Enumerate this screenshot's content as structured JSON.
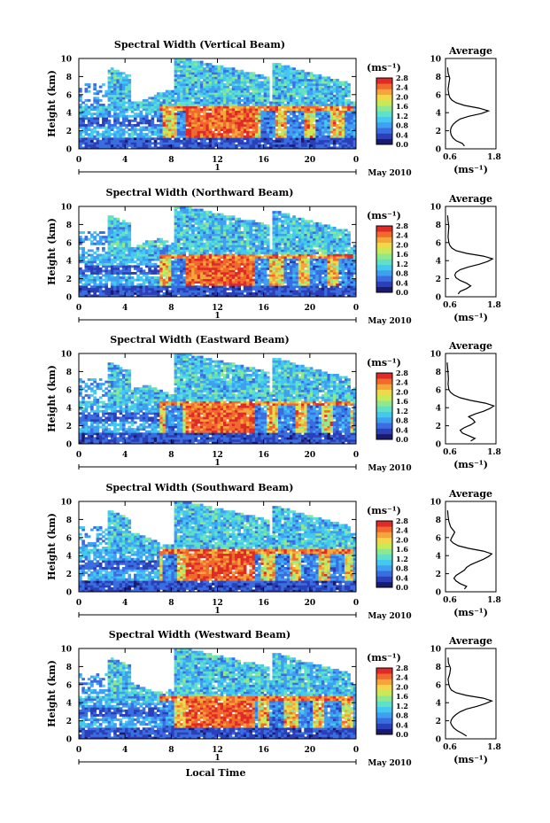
{
  "colors": {
    "scale": [
      "#1a1a6e",
      "#2b3fb8",
      "#3a6ee0",
      "#3f9ff0",
      "#44c8f0",
      "#5fe0c8",
      "#8ee890",
      "#c8ea58",
      "#f0d84a",
      "#f5a63a",
      "#f06a2e",
      "#e02a28"
    ],
    "white": "#ffffff"
  },
  "chart_data": [
    {
      "type": "heatmap",
      "title": "Spectral Width (Vertical Beam)",
      "ylabel": "Height (km)",
      "ylim": [
        0,
        10
      ],
      "y_ticks": [
        "0",
        "2",
        "4",
        "6",
        "8",
        "10"
      ],
      "xlim": [
        0,
        24
      ],
      "x_ticks": [
        "0",
        "4",
        "8",
        "12",
        "16",
        "20",
        "0"
      ],
      "date_marker": "1",
      "date_label": "May 2010",
      "colorbar": {
        "unit_label": "(ms⁻¹)",
        "ticks": [
          "2.8",
          "2.4",
          "2.0",
          "1.6",
          "1.2",
          "0.8",
          "0.4",
          "0.0"
        ],
        "range": [
          0,
          2.8
        ]
      },
      "average": {
        "title": "Average",
        "xlabel": "(ms⁻¹)",
        "xlim": [
          0.6,
          1.8
        ],
        "x_ticks": [
          "0.6",
          "1.8"
        ],
        "ylim": [
          0,
          10
        ],
        "height": [
          0.3,
          0.6,
          0.9,
          1.2,
          1.5,
          1.8,
          2.1,
          2.4,
          2.7,
          3.0,
          3.3,
          3.6,
          3.9,
          4.2,
          4.5,
          4.8,
          5.1,
          5.4,
          5.7,
          6.0,
          6.6,
          7.2,
          7.8,
          8.4,
          9.0
        ],
        "width": [
          1.05,
          1.0,
          0.85,
          0.78,
          0.74,
          0.72,
          0.72,
          0.74,
          0.78,
          0.85,
          0.95,
          1.15,
          1.45,
          1.62,
          1.4,
          1.05,
          0.85,
          0.75,
          0.7,
          0.68,
          0.66,
          0.68,
          0.7,
          0.66,
          0.65
        ]
      }
    },
    {
      "type": "heatmap",
      "title": "Spectral Width (Northward Beam)",
      "ylabel": "Height (km)",
      "ylim": [
        0,
        10
      ],
      "y_ticks": [
        "0",
        "2",
        "4",
        "6",
        "8",
        "10"
      ],
      "xlim": [
        0,
        24
      ],
      "x_ticks": [
        "0",
        "4",
        "8",
        "12",
        "16",
        "20",
        "0"
      ],
      "date_marker": "1",
      "date_label": "May 2010",
      "colorbar": {
        "unit_label": "(ms⁻¹)",
        "ticks": [
          "2.8",
          "2.4",
          "2.0",
          "1.6",
          "1.2",
          "0.8",
          "0.4",
          "0.0"
        ],
        "range": [
          0,
          2.8
        ]
      },
      "average": {
        "title": "Average",
        "xlabel": "(ms⁻¹)",
        "xlim": [
          0.6,
          1.8
        ],
        "x_ticks": [
          "0.6",
          "1.8"
        ],
        "ylim": [
          0,
          10
        ],
        "height": [
          0.3,
          0.6,
          0.9,
          1.2,
          1.5,
          1.8,
          2.1,
          2.4,
          2.7,
          3.0,
          3.3,
          3.6,
          3.9,
          4.2,
          4.5,
          4.8,
          5.1,
          5.4,
          5.7,
          6.0,
          6.6,
          7.2,
          7.8,
          8.4,
          9.0
        ],
        "width": [
          0.9,
          0.95,
          1.1,
          1.2,
          1.1,
          0.95,
          0.85,
          0.82,
          0.85,
          0.95,
          1.15,
          1.4,
          1.6,
          1.72,
          1.5,
          1.1,
          0.85,
          0.75,
          0.7,
          0.68,
          0.66,
          0.67,
          0.68,
          0.66,
          0.65
        ]
      }
    },
    {
      "type": "heatmap",
      "title": "Spectral Width (Eastward Beam)",
      "ylabel": "Height (km)",
      "ylim": [
        0,
        10
      ],
      "y_ticks": [
        "0",
        "2",
        "4",
        "6",
        "8",
        "10"
      ],
      "xlim": [
        0,
        24
      ],
      "x_ticks": [
        "0",
        "4",
        "8",
        "12",
        "16",
        "20",
        "0"
      ],
      "date_marker": "1",
      "date_label": "May 2010",
      "colorbar": {
        "unit_label": "(ms⁻¹)",
        "ticks": [
          "2.8",
          "2.4",
          "2.0",
          "1.6",
          "1.2",
          "0.8",
          "0.4",
          "0.0"
        ],
        "range": [
          0,
          2.8
        ]
      },
      "average": {
        "title": "Average",
        "xlabel": "(ms⁻¹)",
        "xlim": [
          0.6,
          1.8
        ],
        "x_ticks": [
          "0.6",
          "1.8"
        ],
        "ylim": [
          0,
          10
        ],
        "height": [
          0.3,
          0.6,
          0.9,
          1.2,
          1.5,
          1.8,
          2.1,
          2.4,
          2.7,
          3.0,
          3.3,
          3.6,
          3.9,
          4.2,
          4.5,
          4.8,
          5.1,
          5.4,
          5.7,
          6.0,
          6.6,
          7.2,
          7.8,
          8.4,
          9.0
        ],
        "width": [
          1.2,
          1.3,
          1.15,
          1.0,
          0.95,
          1.05,
          1.2,
          1.3,
          1.25,
          1.15,
          1.3,
          1.5,
          1.65,
          1.75,
          1.55,
          1.2,
          0.95,
          0.8,
          0.72,
          0.68,
          0.66,
          0.67,
          0.66,
          0.65,
          0.64
        ]
      }
    },
    {
      "type": "heatmap",
      "title": "Spectral Width (Southward Beam)",
      "ylabel": "Height (km)",
      "ylim": [
        0,
        10
      ],
      "y_ticks": [
        "0",
        "2",
        "4",
        "6",
        "8",
        "10"
      ],
      "xlim": [
        0,
        24
      ],
      "x_ticks": [
        "0",
        "4",
        "8",
        "12",
        "16",
        "20",
        "0"
      ],
      "date_marker": "1",
      "date_label": "May 2010",
      "colorbar": {
        "unit_label": "(ms⁻¹)",
        "ticks": [
          "2.8",
          "2.4",
          "2.0",
          "1.6",
          "1.2",
          "0.8",
          "0.4",
          "0.0"
        ],
        "range": [
          0,
          2.8
        ]
      },
      "average": {
        "title": "Average",
        "xlabel": "(ms⁻¹)",
        "xlim": [
          0.6,
          1.8
        ],
        "x_ticks": [
          "0.6",
          "1.8"
        ],
        "ylim": [
          0,
          10
        ],
        "height": [
          0.3,
          0.6,
          0.9,
          1.2,
          1.5,
          1.8,
          2.1,
          2.4,
          2.7,
          3.0,
          3.3,
          3.6,
          3.9,
          4.2,
          4.5,
          4.8,
          5.1,
          5.4,
          5.7,
          6.0,
          6.6,
          7.2,
          7.8,
          8.4,
          9.0
        ],
        "width": [
          1.05,
          1.1,
          0.95,
          0.85,
          0.8,
          0.85,
          0.95,
          1.05,
          1.1,
          1.2,
          1.35,
          1.5,
          1.62,
          1.7,
          1.5,
          1.15,
          0.9,
          0.78,
          0.72,
          0.75,
          0.82,
          0.72,
          0.68,
          0.66,
          0.65
        ]
      }
    },
    {
      "type": "heatmap",
      "title": "Spectral Width (Westward Beam)",
      "ylabel": "Height (km)",
      "ylim": [
        0,
        10
      ],
      "y_ticks": [
        "0",
        "2",
        "4",
        "6",
        "8",
        "10"
      ],
      "xlim": [
        0,
        24
      ],
      "x_ticks": [
        "0",
        "4",
        "8",
        "12",
        "16",
        "20",
        "0"
      ],
      "date_marker": "1",
      "date_label": "May 2010",
      "xlabel": "Local Time",
      "colorbar": {
        "unit_label": "(ms⁻¹)",
        "ticks": [
          "2.8",
          "2.4",
          "2.0",
          "1.6",
          "1.2",
          "0.8",
          "0.4",
          "0.0"
        ],
        "range": [
          0,
          2.8
        ]
      },
      "average": {
        "title": "Average",
        "xlabel": "(ms⁻¹)",
        "xlim": [
          0.6,
          1.8
        ],
        "x_ticks": [
          "0.6",
          "1.8"
        ],
        "ylim": [
          0,
          10
        ],
        "height": [
          0.3,
          0.6,
          0.9,
          1.2,
          1.5,
          1.8,
          2.1,
          2.4,
          2.7,
          3.0,
          3.3,
          3.6,
          3.9,
          4.2,
          4.5,
          4.8,
          5.1,
          5.4,
          5.7,
          6.0,
          6.6,
          7.2,
          7.8,
          8.4,
          9.0
        ],
        "width": [
          1.1,
          1.0,
          0.88,
          0.8,
          0.75,
          0.72,
          0.74,
          0.78,
          0.85,
          0.95,
          1.1,
          1.35,
          1.55,
          1.7,
          1.5,
          1.1,
          0.85,
          0.74,
          0.7,
          0.68,
          0.66,
          0.7,
          0.72,
          0.67,
          0.66
        ]
      }
    }
  ]
}
